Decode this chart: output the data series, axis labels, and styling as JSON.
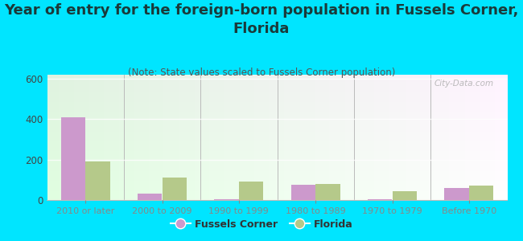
{
  "title": "Year of entry for the foreign-born population in Fussels Corner,\nFlorida",
  "subtitle": "(Note: State values scaled to Fussels Corner population)",
  "categories": [
    "2010 or later",
    "2000 to 2009",
    "1990 to 1999",
    "1980 to 1989",
    "1970 to 1979",
    "Before 1970"
  ],
  "fussels_corner": [
    410,
    30,
    5,
    75,
    5,
    60
  ],
  "florida": [
    190,
    110,
    90,
    80,
    42,
    70
  ],
  "fussels_color": "#cc99cc",
  "florida_color": "#b5c98a",
  "bg_color": "#00e5ff",
  "ylim": [
    0,
    620
  ],
  "yticks": [
    0,
    200,
    400,
    600
  ],
  "watermark": "City-Data.com",
  "title_fontsize": 13,
  "subtitle_fontsize": 8.5,
  "legend_fussels": "Fussels Corner",
  "legend_florida": "Florida",
  "title_color": "#1a3a3a",
  "subtitle_color": "#555555",
  "tick_color": "#444444"
}
